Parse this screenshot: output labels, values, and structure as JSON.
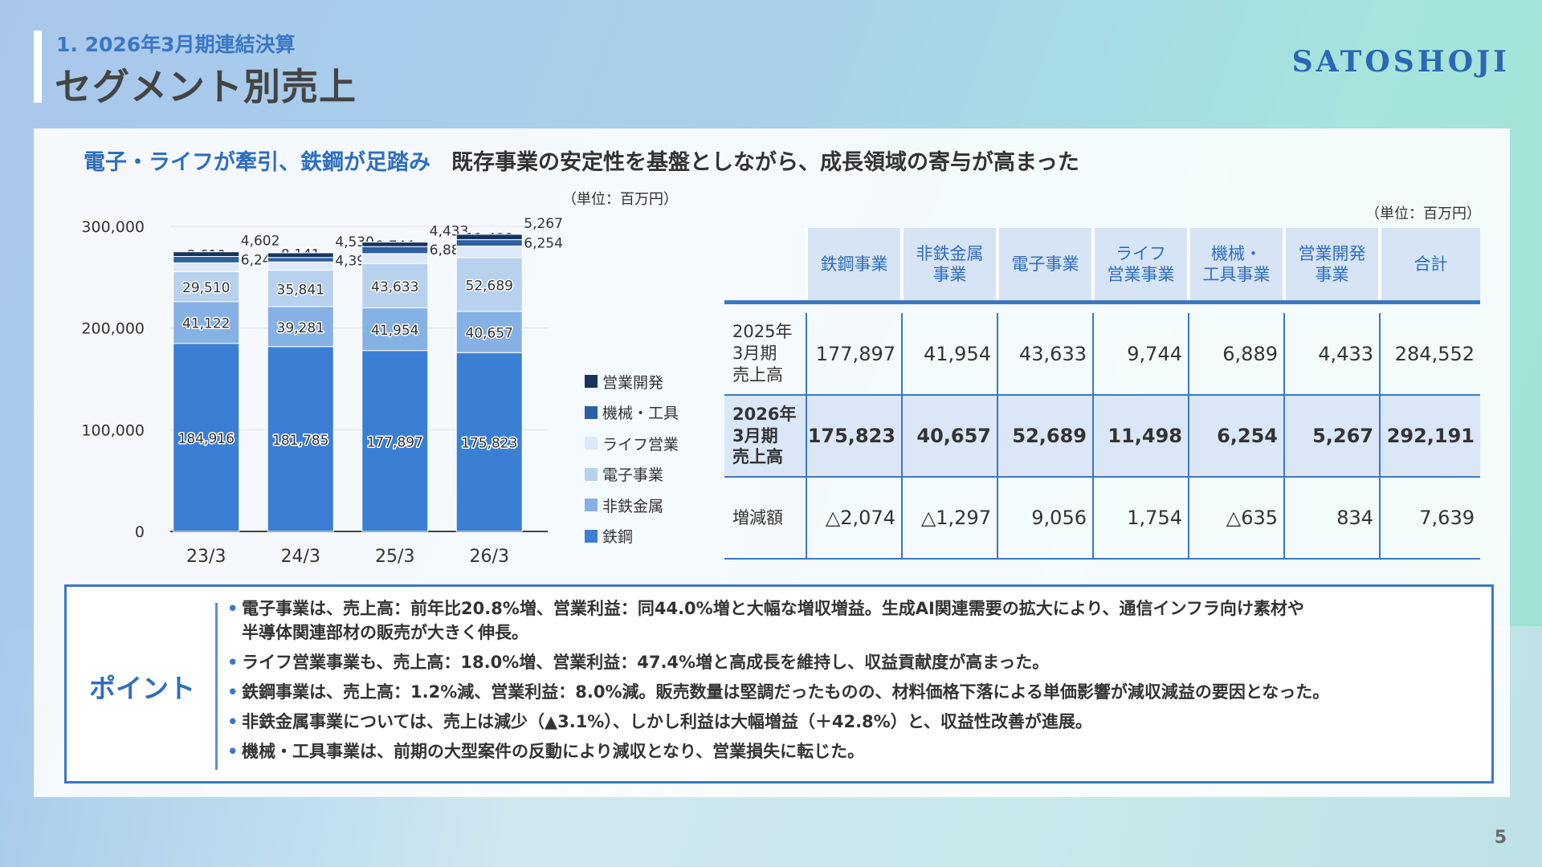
{
  "header": {
    "section": "1. 2026年3月期連結決算",
    "title": "セグメント別売上",
    "logo": "SATOSHOJI"
  },
  "headline": {
    "lead": "電子・ライフが牽引、鉄鋼が足踏み",
    "sub": "既存事業の安定性を基盤としながら、成長領域の寄与が高まった"
  },
  "chart_data": {
    "type": "bar",
    "stacked": true,
    "unit": "（単位：百万円）",
    "categories": [
      "23/3",
      "24/3",
      "25/3",
      "26/3"
    ],
    "ylim": [
      0,
      300000
    ],
    "yticks": [
      "0",
      "100,000",
      "200,000",
      "300,000"
    ],
    "series": [
      {
        "name": "鉄鋼",
        "color": "#3a7fd4",
        "values": [
          184916,
          181785,
          177897,
          175823
        ],
        "labels": [
          "184,916",
          "181,785",
          "177,897",
          "175,823"
        ]
      },
      {
        "name": "非鉄金属",
        "color": "#86b1e4",
        "values": [
          41122,
          39281,
          41954,
          40657
        ],
        "labels": [
          "41,122",
          "39,281",
          "41,954",
          "40,657"
        ]
      },
      {
        "name": "電子事業",
        "color": "#b7d1ef",
        "values": [
          29510,
          35841,
          43633,
          52689
        ],
        "labels": [
          "29,510",
          "35,841",
          "43,633",
          "52,689"
        ]
      },
      {
        "name": "ライフ営業",
        "color": "#dde9f8",
        "values": [
          8610,
          8141,
          9744,
          11498
        ],
        "labels": [
          "8,610",
          "8,141",
          "9,744",
          "11,498"
        ]
      },
      {
        "name": "機械・工具",
        "color": "#2d5fa3",
        "values": [
          6243,
          4396,
          6889,
          6254
        ],
        "labels": [
          "6,243",
          "4,396",
          "6,889",
          "6,254"
        ]
      },
      {
        "name": "営業開発",
        "color": "#17345f",
        "values": [
          4602,
          4530,
          4433,
          5267
        ],
        "labels": [
          "4,602",
          "4,530",
          "4,433",
          "5,267"
        ]
      }
    ],
    "legend_order": [
      "営業開発",
      "機械・工具",
      "ライフ営業",
      "電子事業",
      "非鉄金属",
      "鉄鋼"
    ],
    "legend_position": "right",
    "grid": true
  },
  "table": {
    "unit": "（単位：百万円）",
    "columns": [
      "鉄鋼事業",
      "非鉄金属\n事業",
      "電子事業",
      "ライフ\n営業事業",
      "機械・\n工具事業",
      "営業開発\n事業",
      "合計"
    ],
    "rows": [
      {
        "label": "2025年\n3月期\n売上高",
        "values": [
          "177,897",
          "41,954",
          "43,633",
          "9,744",
          "6,889",
          "4,433",
          "284,552"
        ]
      },
      {
        "label": "2026年\n3月期\n売上高",
        "values": [
          "175,823",
          "40,657",
          "52,689",
          "11,498",
          "6,254",
          "5,267",
          "292,191"
        ]
      },
      {
        "label": "増減額",
        "values": [
          "△2,074",
          "△1,297",
          "9,056",
          "1,754",
          "△635",
          "834",
          "7,639"
        ]
      }
    ]
  },
  "points": {
    "title": "ポイント",
    "items": [
      "電子事業は、売上高：前年比20.8%増、営業利益：同44.0%増と大幅な増収増益。生成AI関連需要の拡大により、通信インフラ向け素材や",
      "半導体関連部材の販売が大きく伸長。",
      "ライフ営業事業も、売上高：18.0%増、営業利益：47.4%増と高成長を維持し、収益貢献度が高まった。",
      "鉄鋼事業は、売上高：1.2%減、営業利益：8.0%減。販売数量は堅調だったものの、材料価格下落による単価影響が減収減益の要因となった。",
      "非鉄金属事業については、売上は減少（▲3.1%）、しかし利益は大幅増益（＋42.8%）と、収益性改善が進展。",
      "機械・工具事業は、前期の大型案件の反動により減収となり、営業損失に転じた。"
    ]
  },
  "footer": {
    "page": "5"
  }
}
